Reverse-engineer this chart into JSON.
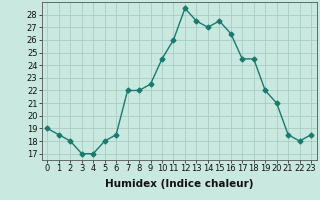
{
  "x": [
    0,
    1,
    2,
    3,
    4,
    5,
    6,
    7,
    8,
    9,
    10,
    11,
    12,
    13,
    14,
    15,
    16,
    17,
    18,
    19,
    20,
    21,
    22,
    23
  ],
  "y": [
    19,
    18.5,
    18,
    17,
    17,
    18,
    18.5,
    22,
    22,
    22.5,
    24.5,
    26,
    28.5,
    27.5,
    27,
    27.5,
    26.5,
    24.5,
    24.5,
    22,
    21,
    18.5,
    18,
    18.5
  ],
  "line_color": "#1a7a6e",
  "bg_color": "#c8e8e0",
  "grid_color": "#a8ccc4",
  "xlabel": "Humidex (Indice chaleur)",
  "xlabel_fontsize": 7.5,
  "yticks": [
    17,
    18,
    19,
    20,
    21,
    22,
    23,
    24,
    25,
    26,
    27,
    28
  ],
  "xticks": [
    0,
    1,
    2,
    3,
    4,
    5,
    6,
    7,
    8,
    9,
    10,
    11,
    12,
    13,
    14,
    15,
    16,
    17,
    18,
    19,
    20,
    21,
    22,
    23
  ],
  "ylim": [
    16.5,
    29
  ],
  "xlim": [
    -0.5,
    23.5
  ],
  "tick_fontsize": 6,
  "marker": "D",
  "marker_size": 2.5,
  "line_width": 1.0
}
